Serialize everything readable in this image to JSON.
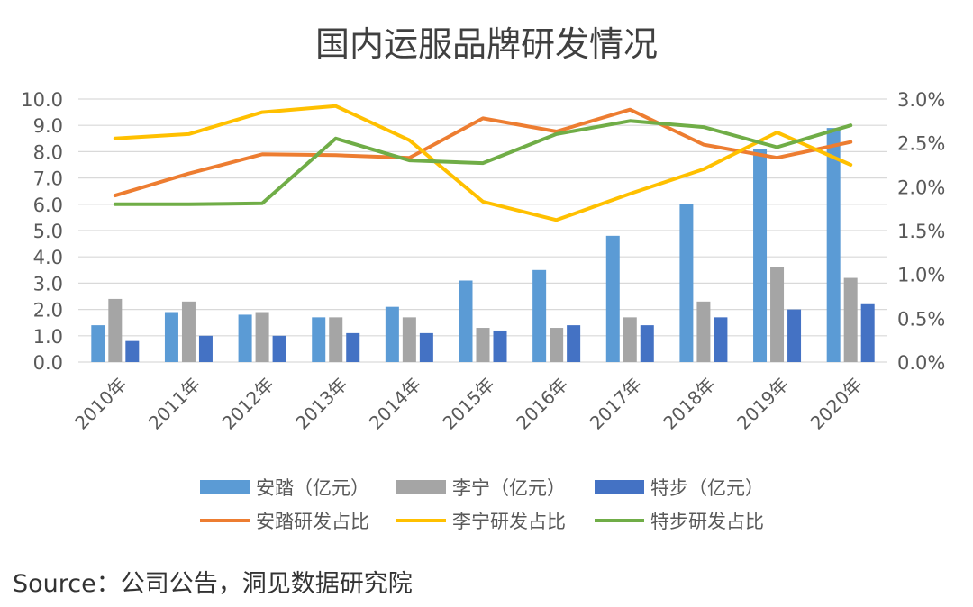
{
  "source": "Source：公司公告，洞见数据研究院",
  "colors": {
    "anta_bar": "#5b9bd5",
    "lining_bar": "#a5a5a5",
    "xtep_bar": "#4472c4",
    "anta_line": "#ed7d31",
    "lining_line": "#ffc000",
    "xtep_line": "#70ad47",
    "grid": "#d9d9d9",
    "text": "#595959",
    "title": "#404040"
  },
  "chart_data": {
    "type": "bar",
    "title": "国内运服品牌研发情况",
    "categories": [
      "2010年",
      "2011年",
      "2012年",
      "2013年",
      "2014年",
      "2015年",
      "2016年",
      "2017年",
      "2018年",
      "2019年",
      "2020年"
    ],
    "y_left": {
      "min": 0,
      "max": 10,
      "ticks": [
        "0.0",
        "1.0",
        "2.0",
        "3.0",
        "4.0",
        "5.0",
        "6.0",
        "7.0",
        "8.0",
        "9.0",
        "10.0"
      ]
    },
    "y_right": {
      "min": 0,
      "max": 3.0,
      "ticks": [
        "0.0%",
        "0.5%",
        "1.0%",
        "1.5%",
        "2.0%",
        "2.5%",
        "3.0%"
      ]
    },
    "grid": true,
    "legend_position": "bottom",
    "series": [
      {
        "name": "安踏（亿元）",
        "kind": "bar",
        "axis": "left",
        "color": "#5b9bd5",
        "values": [
          1.4,
          1.9,
          1.8,
          1.7,
          2.1,
          3.1,
          3.5,
          4.8,
          6.0,
          8.1,
          8.9
        ]
      },
      {
        "name": "李宁（亿元）",
        "kind": "bar",
        "axis": "left",
        "color": "#a5a5a5",
        "values": [
          2.4,
          2.3,
          1.9,
          1.7,
          1.7,
          1.3,
          1.3,
          1.7,
          2.3,
          3.6,
          3.2
        ]
      },
      {
        "name": "特步（亿元）",
        "kind": "bar",
        "axis": "left",
        "color": "#4472c4",
        "values": [
          0.8,
          1.0,
          1.0,
          1.1,
          1.1,
          1.2,
          1.4,
          1.4,
          1.7,
          2.0,
          2.2
        ]
      },
      {
        "name": "安踏研发占比",
        "kind": "line",
        "axis": "right",
        "color": "#ed7d31",
        "values": [
          1.9,
          2.15,
          2.37,
          2.36,
          2.33,
          2.78,
          2.63,
          2.88,
          2.48,
          2.33,
          2.51
        ]
      },
      {
        "name": "李宁研发占比",
        "kind": "line",
        "axis": "right",
        "color": "#ffc000",
        "values": [
          2.55,
          2.6,
          2.85,
          2.92,
          2.53,
          1.83,
          1.62,
          1.92,
          2.2,
          2.62,
          2.25
        ]
      },
      {
        "name": "特步研发占比",
        "kind": "line",
        "axis": "right",
        "color": "#70ad47",
        "values": [
          1.8,
          1.8,
          1.81,
          2.55,
          2.3,
          2.27,
          2.6,
          2.75,
          2.68,
          2.45,
          2.7
        ]
      }
    ]
  }
}
